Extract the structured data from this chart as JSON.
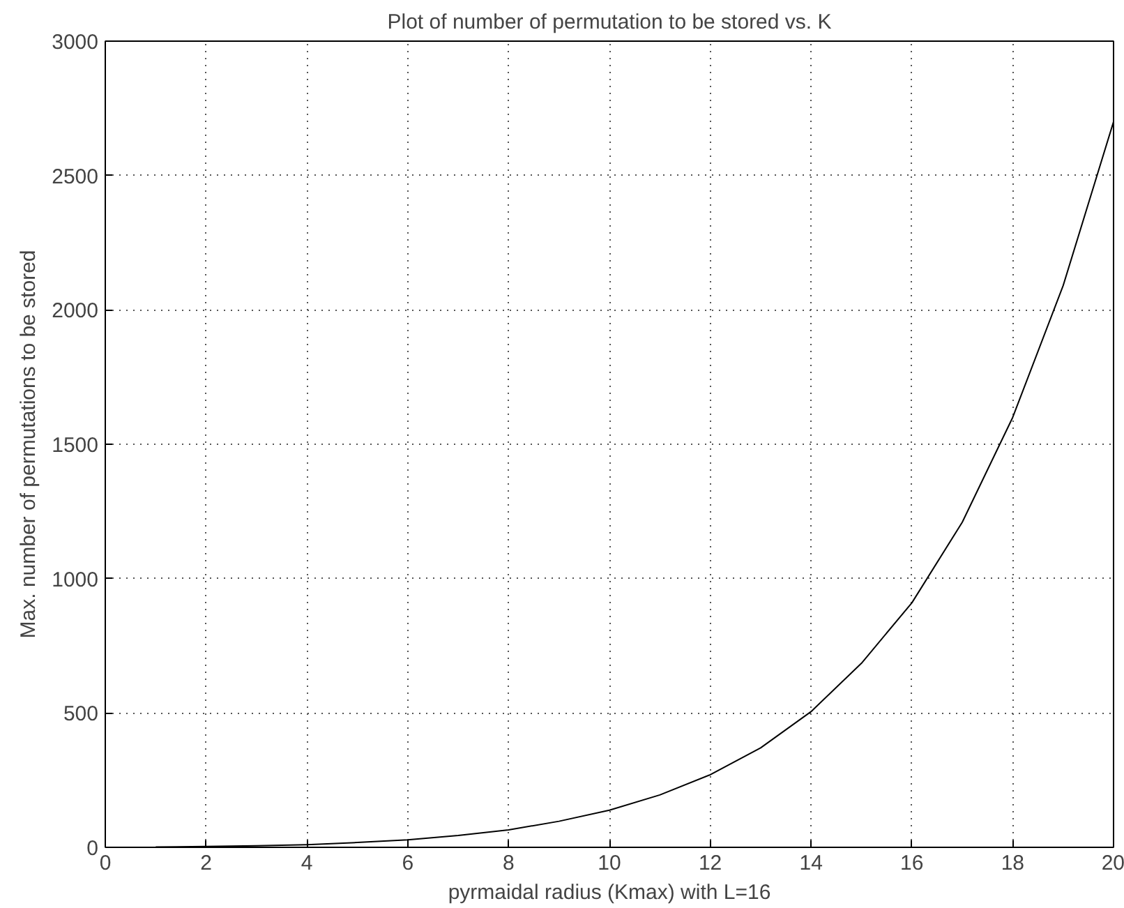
{
  "chart_data": {
    "type": "line",
    "title": "Plot of number of permutation to be stored vs. K",
    "xlabel": "pyrmaidal radius (Kmax) with L=16",
    "ylabel": "Max. number of permutations to be stored",
    "x": [
      1,
      2,
      3,
      4,
      5,
      6,
      7,
      8,
      9,
      10,
      11,
      12,
      13,
      14,
      15,
      16,
      17,
      18,
      19,
      20
    ],
    "series": [
      {
        "color": "#000000",
        "values": [
          1,
          3,
          6,
          10,
          18,
          28,
          44,
          65,
          97,
          138,
          195,
          270,
          370,
          505,
          685,
          910,
          1210,
          1600,
          2090,
          2700
        ]
      }
    ],
    "xlim": [
      0,
      20
    ],
    "ylim": [
      0,
      3000
    ],
    "xticks": [
      0,
      2,
      4,
      6,
      8,
      10,
      12,
      14,
      16,
      18,
      20
    ],
    "yticks": [
      0,
      500,
      1000,
      1500,
      2000,
      2500,
      3000
    ],
    "grid": true,
    "line_style": "solid"
  }
}
